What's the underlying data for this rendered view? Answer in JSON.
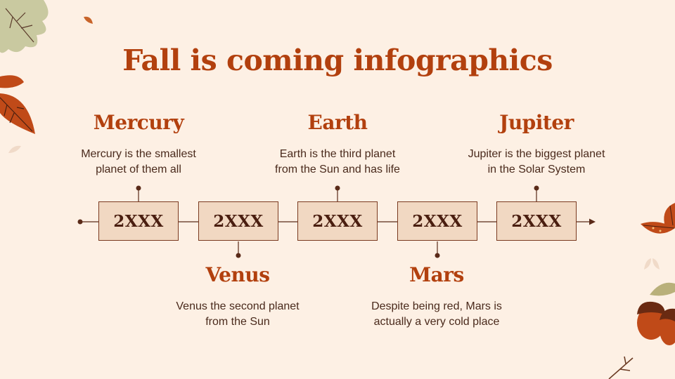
{
  "slide": {
    "title": "Fall is coming infographics"
  },
  "events": [
    {
      "planet": "Mercury",
      "year": "2XXX",
      "description_line1": "Mercury is the smallest",
      "description_line2": "planet of them all",
      "position": "above"
    },
    {
      "planet": "Venus",
      "year": "2XXX",
      "description_line1": "Venus the second planet",
      "description_line2": "from the Sun",
      "position": "below"
    },
    {
      "planet": "Earth",
      "year": "2XXX",
      "description_line1": "Earth is the third planet",
      "description_line2": "from the Sun and has life",
      "position": "above"
    },
    {
      "planet": "Mars",
      "year": "2XXX",
      "description_line1": "Despite being red, Mars is",
      "description_line2": "actually a very cold place",
      "position": "below"
    },
    {
      "planet": "Jupiter",
      "year": "2XXX",
      "description_line1": "Jupiter is the biggest planet",
      "description_line2": "in the Solar System",
      "position": "above"
    }
  ],
  "colors": {
    "background": "#fdf0e4",
    "accent": "#b2400e",
    "text": "#4a2a1c",
    "box_fill": "#f1d8c2",
    "line": "#5a2a18"
  },
  "decorations": [
    "maple-leaf-icon",
    "autumn-leaf-icon",
    "acorn-icon",
    "twig-icon"
  ]
}
